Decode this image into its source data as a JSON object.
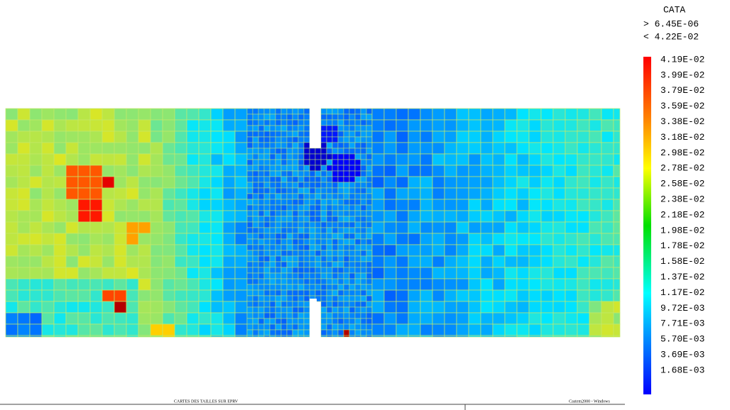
{
  "legend": {
    "title": "CATA",
    "max_label": "> 6.45E-06",
    "min_label": "< 4.22E-02",
    "levels": [
      "4.19E-02",
      "3.99E-02",
      "3.79E-02",
      "3.59E-02",
      "3.38E-02",
      "3.18E-02",
      "2.98E-02",
      "2.78E-02",
      "2.58E-02",
      "2.38E-02",
      "2.18E-02",
      "1.98E-02",
      "1.78E-02",
      "1.58E-02",
      "1.37E-02",
      "1.17E-02",
      "9.72E-03",
      "7.71E-03",
      "5.70E-03",
      "3.69E-03",
      "1.68E-03"
    ]
  },
  "footer": {
    "caption": "CARTES DES TAILLES SUR EPRV",
    "app": "Castem2000 - Windows"
  }
}
